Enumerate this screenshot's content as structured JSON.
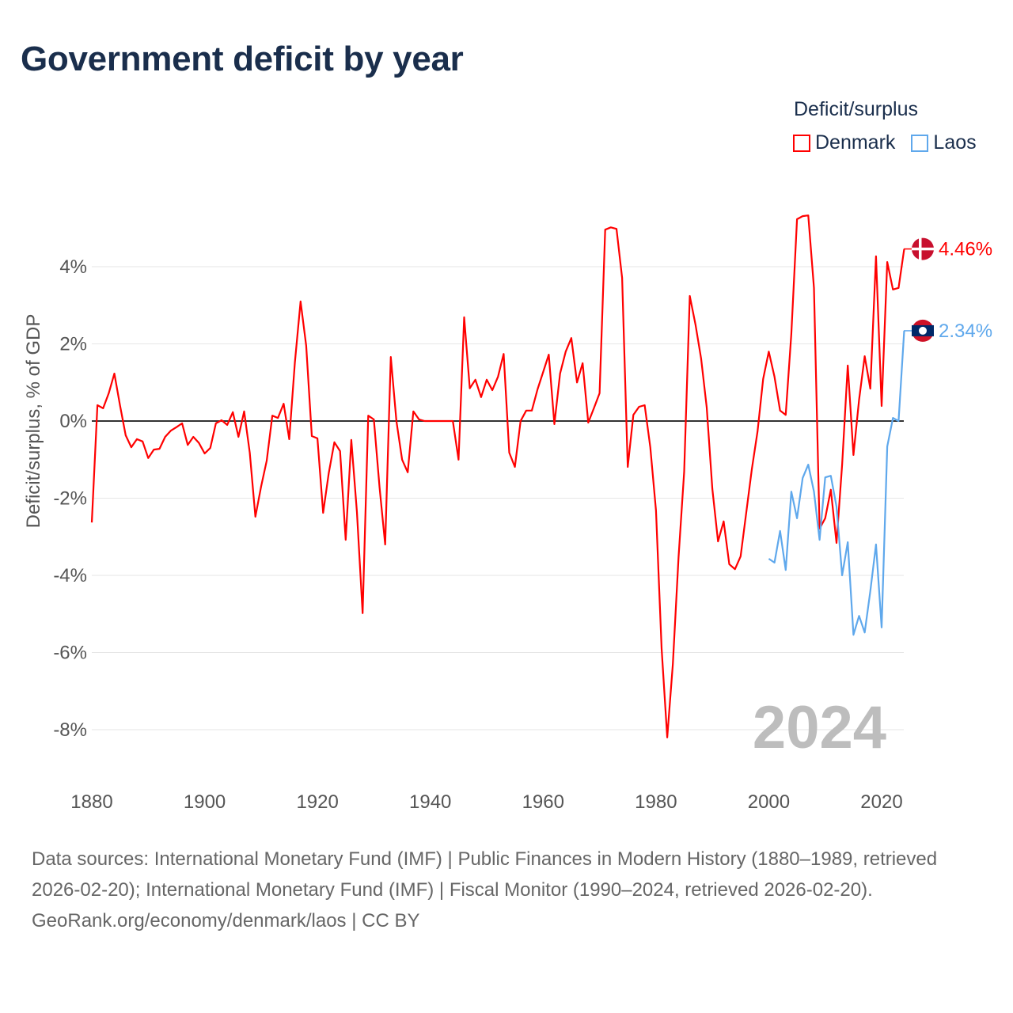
{
  "chart_data": {
    "type": "line",
    "title": "Government deficit by year",
    "xlabel": "",
    "ylabel": "Deficit/surplus, % of GDP",
    "xlim": [
      1880,
      2024
    ],
    "ylim": [
      -9,
      5.5
    ],
    "x_ticks": [
      1880,
      1900,
      1920,
      1940,
      1960,
      1980,
      2000,
      2020
    ],
    "x_tick_labels": [
      "1880",
      "1900",
      "1920",
      "1940",
      "1960",
      "1980",
      "2000",
      "2020"
    ],
    "y_ticks": [
      4,
      2,
      0,
      -2,
      -4,
      -6,
      -8
    ],
    "y_tick_labels": [
      "4%",
      "2%",
      "0%",
      "-2%",
      "-4%",
      "-6%",
      "-8%"
    ],
    "grid": true,
    "legend_title": "Deficit/surplus",
    "legend_placement": "top-right",
    "current_year_label": "2024",
    "series": [
      {
        "name": "Denmark",
        "color": "#ff0000",
        "end_label": "4.46%",
        "start_year": 1880,
        "values": [
          -2.63,
          0.41,
          0.33,
          0.72,
          1.23,
          0.41,
          -0.37,
          -0.68,
          -0.47,
          -0.53,
          -0.96,
          -0.74,
          -0.72,
          -0.41,
          -0.25,
          -0.16,
          -0.06,
          -0.62,
          -0.41,
          -0.57,
          -0.84,
          -0.7,
          -0.06,
          0.02,
          -0.1,
          0.23,
          -0.41,
          0.25,
          -0.82,
          -2.48,
          -1.7,
          -1.03,
          0.14,
          0.08,
          0.45,
          -0.47,
          1.52,
          3.1,
          1.95,
          -0.39,
          -0.45,
          -2.38,
          -1.35,
          -0.55,
          -0.78,
          -3.08,
          -0.49,
          -2.36,
          -4.98,
          0.14,
          0.04,
          -1.72,
          -3.2,
          1.66,
          0.0,
          -1.0,
          -1.33,
          0.25,
          0.04,
          0.0,
          0.0,
          0.0,
          0.0,
          0.0,
          0.0,
          -1.0,
          2.69,
          0.85,
          1.07,
          0.62,
          1.07,
          0.8,
          1.15,
          1.74,
          -0.82,
          -1.19,
          0.0,
          0.27,
          0.27,
          0.82,
          1.27,
          1.72,
          -0.08,
          1.23,
          1.8,
          2.15,
          1.0,
          1.5,
          -0.04,
          0.33,
          0.72,
          4.96,
          5.02,
          4.98,
          3.71,
          -1.19,
          0.16,
          0.37,
          0.41,
          -0.68,
          -2.32,
          -5.9,
          -8.2,
          -6.3,
          -3.53,
          -1.31,
          3.24,
          2.5,
          1.62,
          0.35,
          -1.76,
          -3.12,
          -2.6,
          -3.71,
          -3.84,
          -3.51,
          -2.38,
          -1.25,
          -0.27,
          1.09,
          1.8,
          1.15,
          0.27,
          0.16,
          2.26,
          5.23,
          5.31,
          5.33,
          3.45,
          -2.79,
          -2.52,
          -1.78,
          -3.16,
          -1.13,
          1.44,
          -0.88,
          0.55,
          1.68,
          0.84,
          4.27,
          0.39,
          4.12,
          3.41,
          3.45,
          4.46
        ]
      },
      {
        "name": "Laos",
        "color": "#5fa8ec",
        "end_label": "2.34%",
        "start_year": 2000,
        "values": [
          -3.57,
          -3.67,
          -2.85,
          -3.86,
          -1.83,
          -2.52,
          -1.48,
          -1.13,
          -1.83,
          -3.08,
          -1.46,
          -1.42,
          -2.22,
          -4.0,
          -3.14,
          -5.54,
          -5.05,
          -5.48,
          -4.41,
          -3.2,
          -5.35,
          -0.66,
          0.08,
          0.0,
          2.34
        ]
      }
    ]
  },
  "footer": {
    "sources": "Data sources: International Monetary Fund (IMF) | Public Finances in Modern History (1880–1989, retrieved 2026-02-20); International Monetary Fund (IMF) | Fiscal Monitor (1990–2024, retrieved 2026-02-20).",
    "attribution": "GeoRank.org/economy/denmark/laos | CC BY"
  }
}
